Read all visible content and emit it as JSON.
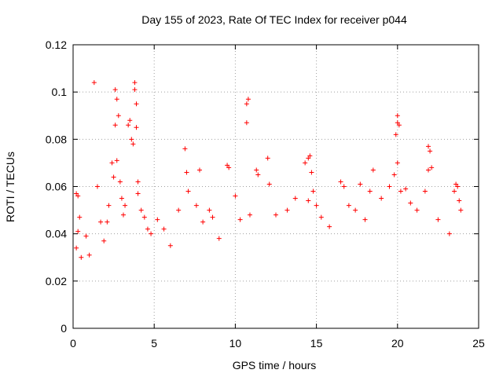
{
  "chart_data": {
    "type": "scatter",
    "title": "Day 155 of 2023, Rate Of TEC Index for receiver p044",
    "xlabel": "GPS time / hours",
    "ylabel": "ROTI / TECUs",
    "xlim": [
      0,
      25
    ],
    "ylim": [
      0,
      0.12
    ],
    "x_ticks": [
      0,
      5,
      10,
      15,
      20,
      25
    ],
    "x_tick_labels": [
      "0",
      "5",
      "10",
      "15",
      "20",
      "25"
    ],
    "y_ticks": [
      0,
      0.02,
      0.04,
      0.06,
      0.08,
      0.1,
      0.12
    ],
    "y_tick_labels": [
      "0",
      "0.02",
      "0.04",
      "0.06",
      "0.08",
      "0.1",
      "0.12"
    ],
    "grid": true,
    "marker": "plus",
    "color": "#ff0000",
    "series": [
      {
        "points": [
          [
            0.2,
            0.057
          ],
          [
            0.3,
            0.056
          ],
          [
            0.4,
            0.047
          ],
          [
            0.3,
            0.041
          ],
          [
            0.2,
            0.034
          ],
          [
            0.5,
            0.03
          ],
          [
            0.8,
            0.039
          ],
          [
            1.0,
            0.031
          ],
          [
            1.3,
            0.104
          ],
          [
            1.5,
            0.06
          ],
          [
            1.7,
            0.045
          ],
          [
            1.9,
            0.037
          ],
          [
            2.1,
            0.045
          ],
          [
            2.2,
            0.052
          ],
          [
            2.4,
            0.07
          ],
          [
            2.5,
            0.064
          ],
          [
            2.6,
            0.086
          ],
          [
            2.6,
            0.101
          ],
          [
            2.7,
            0.097
          ],
          [
            2.7,
            0.071
          ],
          [
            2.8,
            0.09
          ],
          [
            2.9,
            0.062
          ],
          [
            3.0,
            0.055
          ],
          [
            3.1,
            0.048
          ],
          [
            3.2,
            0.052
          ],
          [
            3.4,
            0.086
          ],
          [
            3.5,
            0.088
          ],
          [
            3.6,
            0.08
          ],
          [
            3.7,
            0.078
          ],
          [
            3.8,
            0.104
          ],
          [
            3.8,
            0.101
          ],
          [
            3.9,
            0.095
          ],
          [
            3.9,
            0.085
          ],
          [
            4.0,
            0.062
          ],
          [
            4.0,
            0.057
          ],
          [
            4.2,
            0.05
          ],
          [
            4.4,
            0.047
          ],
          [
            4.6,
            0.042
          ],
          [
            4.8,
            0.04
          ],
          [
            5.2,
            0.046
          ],
          [
            5.6,
            0.042
          ],
          [
            6.0,
            0.035
          ],
          [
            6.5,
            0.05
          ],
          [
            6.9,
            0.076
          ],
          [
            7.0,
            0.066
          ],
          [
            7.1,
            0.058
          ],
          [
            7.6,
            0.052
          ],
          [
            7.8,
            0.067
          ],
          [
            8.0,
            0.045
          ],
          [
            8.4,
            0.05
          ],
          [
            8.6,
            0.047
          ],
          [
            9.0,
            0.038
          ],
          [
            9.5,
            0.069
          ],
          [
            9.6,
            0.068
          ],
          [
            10.0,
            0.056
          ],
          [
            10.3,
            0.046
          ],
          [
            10.7,
            0.095
          ],
          [
            10.8,
            0.097
          ],
          [
            10.7,
            0.087
          ],
          [
            10.9,
            0.048
          ],
          [
            11.3,
            0.067
          ],
          [
            11.4,
            0.065
          ],
          [
            12.0,
            0.072
          ],
          [
            12.1,
            0.061
          ],
          [
            12.5,
            0.048
          ],
          [
            13.2,
            0.05
          ],
          [
            13.7,
            0.055
          ],
          [
            14.3,
            0.07
          ],
          [
            14.5,
            0.072
          ],
          [
            14.6,
            0.073
          ],
          [
            14.7,
            0.066
          ],
          [
            14.5,
            0.054
          ],
          [
            14.8,
            0.058
          ],
          [
            15.0,
            0.052
          ],
          [
            15.3,
            0.047
          ],
          [
            15.8,
            0.043
          ],
          [
            16.5,
            0.062
          ],
          [
            16.7,
            0.06
          ],
          [
            17.0,
            0.052
          ],
          [
            17.4,
            0.05
          ],
          [
            17.7,
            0.061
          ],
          [
            18.0,
            0.046
          ],
          [
            18.3,
            0.058
          ],
          [
            18.5,
            0.067
          ],
          [
            19.0,
            0.055
          ],
          [
            19.5,
            0.06
          ],
          [
            19.8,
            0.065
          ],
          [
            19.9,
            0.082
          ],
          [
            20.0,
            0.09
          ],
          [
            20.0,
            0.087
          ],
          [
            20.1,
            0.086
          ],
          [
            20.0,
            0.07
          ],
          [
            20.2,
            0.058
          ],
          [
            20.5,
            0.059
          ],
          [
            20.8,
            0.053
          ],
          [
            21.2,
            0.05
          ],
          [
            21.7,
            0.058
          ],
          [
            21.9,
            0.077
          ],
          [
            22.0,
            0.075
          ],
          [
            21.9,
            0.067
          ],
          [
            22.1,
            0.068
          ],
          [
            22.5,
            0.046
          ],
          [
            23.2,
            0.04
          ],
          [
            23.5,
            0.058
          ],
          [
            23.6,
            0.061
          ],
          [
            23.7,
            0.06
          ],
          [
            23.8,
            0.054
          ],
          [
            23.9,
            0.05
          ]
        ]
      }
    ]
  }
}
